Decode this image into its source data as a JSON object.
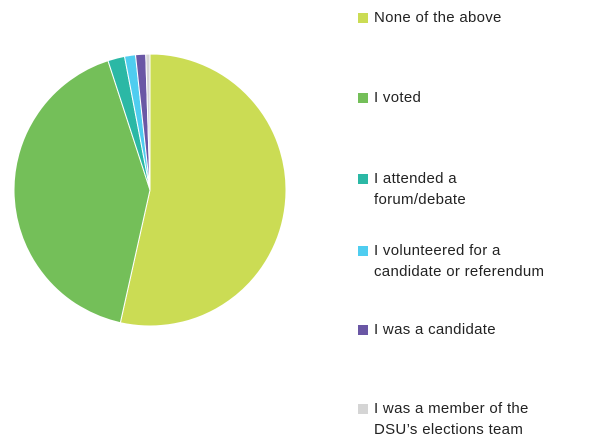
{
  "chart_data": {
    "type": "pie",
    "title": "",
    "legend_position": "right",
    "slices": [
      {
        "label": "None of the above",
        "value": 53.5,
        "color": "#cbdc54"
      },
      {
        "label": "I voted",
        "value": 41.5,
        "color": "#74bf59"
      },
      {
        "label": "I attended a forum/debate",
        "value": 2.0,
        "color": "#2bb8a5"
      },
      {
        "label": "I volunteered for a candidate or referendum",
        "value": 1.3,
        "color": "#4fcdf0"
      },
      {
        "label": "I was a candidate",
        "value": 1.2,
        "color": "#6a57a5"
      },
      {
        "label": "I was a member of the DSU's elections team",
        "value": 0.5,
        "color": "#d5d5d5"
      }
    ]
  },
  "legend": {
    "items": [
      {
        "lines": [
          "None of the above"
        ]
      },
      {
        "lines": [
          "I voted"
        ]
      },
      {
        "lines": [
          "I attended a",
          "forum/debate"
        ]
      },
      {
        "lines": [
          "I volunteered for a",
          "candidate or referendum"
        ]
      },
      {
        "lines": [
          "I was a candidate"
        ]
      },
      {
        "lines": [
          "I was a member of the",
          "DSU’s elections team"
        ]
      }
    ]
  }
}
